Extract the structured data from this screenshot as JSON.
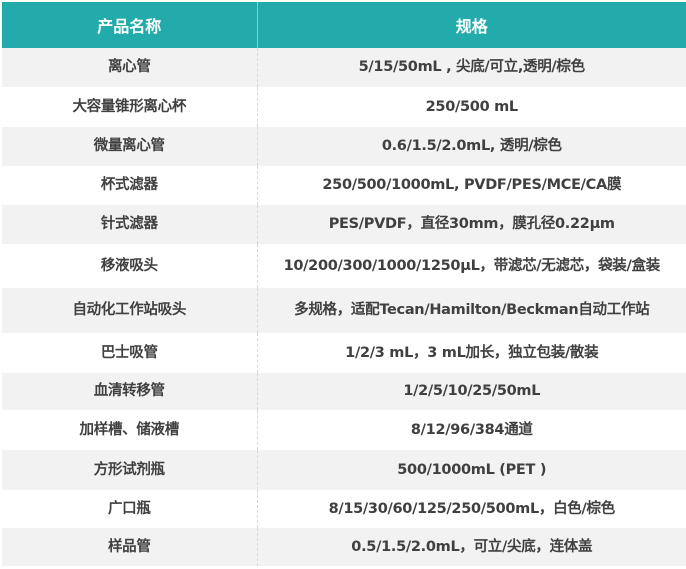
{
  "header": {
    "name": "产品名称",
    "spec": "规格"
  },
  "colors": {
    "header_bg": "#23abab",
    "row_alt": "#f2f2f2",
    "text": "#404040"
  },
  "rows": [
    {
      "name": "离心管",
      "spec": "5/15/50mL , 尖底/可立,透明/棕色"
    },
    {
      "name": "大容量锥形离心杯",
      "spec": "250/500 mL"
    },
    {
      "name": "微量离心管",
      "spec": "0.6/1.5/2.0mL, 透明/棕色"
    },
    {
      "name": "杯式滤器",
      "spec": "250/500/1000mL, PVDF/PES/MCE/CA膜"
    },
    {
      "name": "针式滤器",
      "spec": "PES/PVDF，直径30mm，膜孔径0.22μm"
    },
    {
      "name": "移液吸头",
      "spec": "10/200/300/1000/1250μL，带滤芯/无滤芯，袋装/盒装"
    },
    {
      "name": "自动化工作站吸头",
      "spec": "多规格，适配Tecan/Hamilton/Beckman自动工作站"
    },
    {
      "name": "巴士吸管",
      "spec": "1/2/3 mL，3 mL加长，独立包装/散装"
    },
    {
      "name": "血清转移管",
      "spec": "1/2/5/10/25/50mL"
    },
    {
      "name": "加样槽、储液槽",
      "spec": "8/12/96/384通道"
    },
    {
      "name": "方形试剂瓶",
      "spec": "500/1000mL (PET )"
    },
    {
      "name": "广口瓶",
      "spec": "8/15/30/60/125/250/500mL，白色/棕色"
    },
    {
      "name": "样品管",
      "spec": "0.5/1.5/2.0mL，可立/尖底，连体盖"
    }
  ]
}
